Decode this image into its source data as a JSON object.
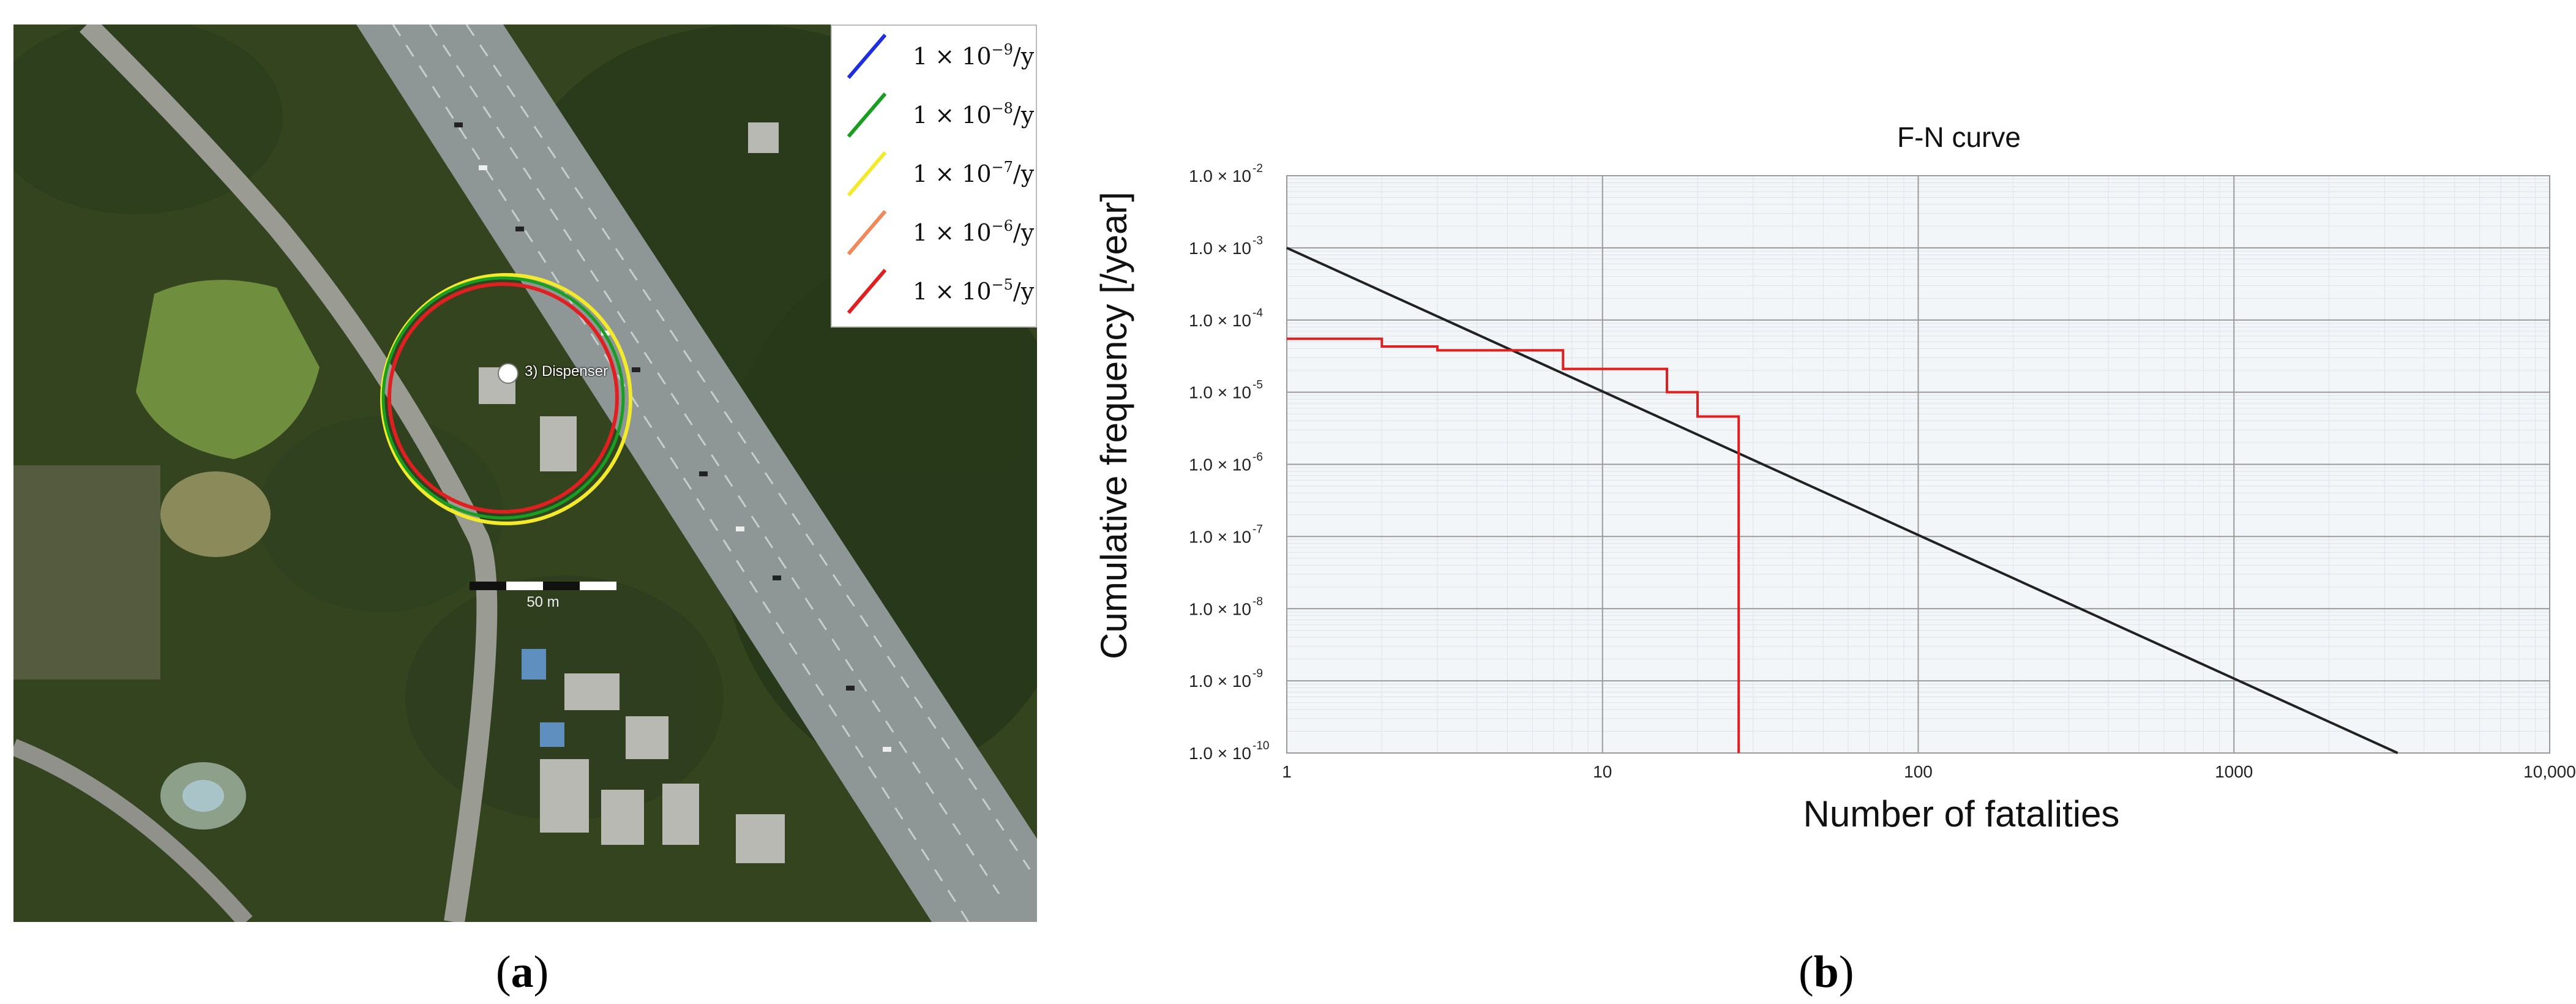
{
  "panel_a": {
    "caption_open": "(",
    "caption_letter": "a",
    "caption_close": ")",
    "site_label": "3) Dispenser",
    "scale_label": "50 m",
    "legend": [
      {
        "coefficient": "1 × 10",
        "exponent": "−9",
        "unit": "/y",
        "color": "#1f2fe0"
      },
      {
        "coefficient": "1 × 10",
        "exponent": "−8",
        "unit": "/y",
        "color": "#1a9e22"
      },
      {
        "coefficient": "1 × 10",
        "exponent": "−7",
        "unit": "/y",
        "color": "#f2ea2a"
      },
      {
        "coefficient": "1 × 10",
        "exponent": "−6",
        "unit": "/y",
        "color": "#f0885a"
      },
      {
        "coefficient": "1 × 10",
        "exponent": "−5",
        "unit": "/y",
        "color": "#e02020"
      }
    ]
  },
  "panel_b": {
    "caption_open": "(",
    "caption_letter": "b",
    "caption_close": ")"
  },
  "chart_data": {
    "type": "line",
    "title": "F-N curve",
    "xlabel": "Number of fatalities",
    "ylabel": "Cumulative frequency [/year]",
    "x_scale": "log",
    "y_scale": "log",
    "xlim": [
      1,
      10000
    ],
    "ylim": [
      1e-10,
      0.01
    ],
    "grid": true,
    "x_ticks": [
      "1",
      "10",
      "100",
      "1000",
      "10,000"
    ],
    "y_tick_mantissa": "1.0 × 10",
    "y_tick_exponents": [
      "-2",
      "-3",
      "-4",
      "-5",
      "-6",
      "-7",
      "-8",
      "-9",
      "-10"
    ],
    "series": [
      {
        "color": "#222222",
        "points": [
          [
            1,
            0.001
          ],
          [
            3300,
            1e-10
          ]
        ]
      },
      {
        "color": "#e02020",
        "step": true,
        "points": [
          [
            1,
            5.5e-05
          ],
          [
            2,
            5.5e-05
          ],
          [
            2,
            4.3e-05
          ],
          [
            3,
            4.3e-05
          ],
          [
            3,
            3.8e-05
          ],
          [
            7.5,
            3.8e-05
          ],
          [
            7.5,
            2.1e-05
          ],
          [
            16,
            2.1e-05
          ],
          [
            16,
            1e-05
          ],
          [
            20,
            1e-05
          ],
          [
            20,
            4.6e-06
          ],
          [
            27,
            4.6e-06
          ],
          [
            27,
            1e-10
          ]
        ]
      }
    ]
  }
}
